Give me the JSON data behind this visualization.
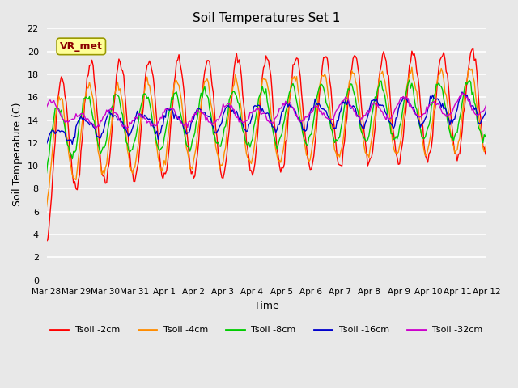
{
  "title": "Soil Temperatures Set 1",
  "xlabel": "Time",
  "ylabel": "Soil Temperature (C)",
  "ylim": [
    0,
    22
  ],
  "yticks": [
    0,
    2,
    4,
    6,
    8,
    10,
    12,
    14,
    16,
    18,
    20,
    22
  ],
  "annotation_text": "VR_met",
  "annotation_box_facecolor": "#FFFF99",
  "annotation_box_edgecolor": "#999900",
  "annotation_text_color": "#8B0000",
  "plot_bg_color": "#E8E8E8",
  "grid_color": "white",
  "series": [
    {
      "label": "Tsoil -2cm",
      "color": "#FF0000"
    },
    {
      "label": "Tsoil -4cm",
      "color": "#FF8C00"
    },
    {
      "label": "Tsoil -8cm",
      "color": "#00CC00"
    },
    {
      "label": "Tsoil -16cm",
      "color": "#0000CC"
    },
    {
      "label": "Tsoil -32cm",
      "color": "#CC00CC"
    }
  ],
  "xtick_labels": [
    "Mar 28",
    "Mar 29",
    "Mar 30",
    "Mar 31",
    "Apr 1",
    "Apr 2",
    "Apr 3",
    "Apr 4",
    "Apr 5",
    "Apr 6",
    "Apr 7",
    "Apr 8",
    "Apr 9",
    "Apr 10",
    "Apr 11",
    "Apr 12"
  ],
  "legend_ncol": 5
}
